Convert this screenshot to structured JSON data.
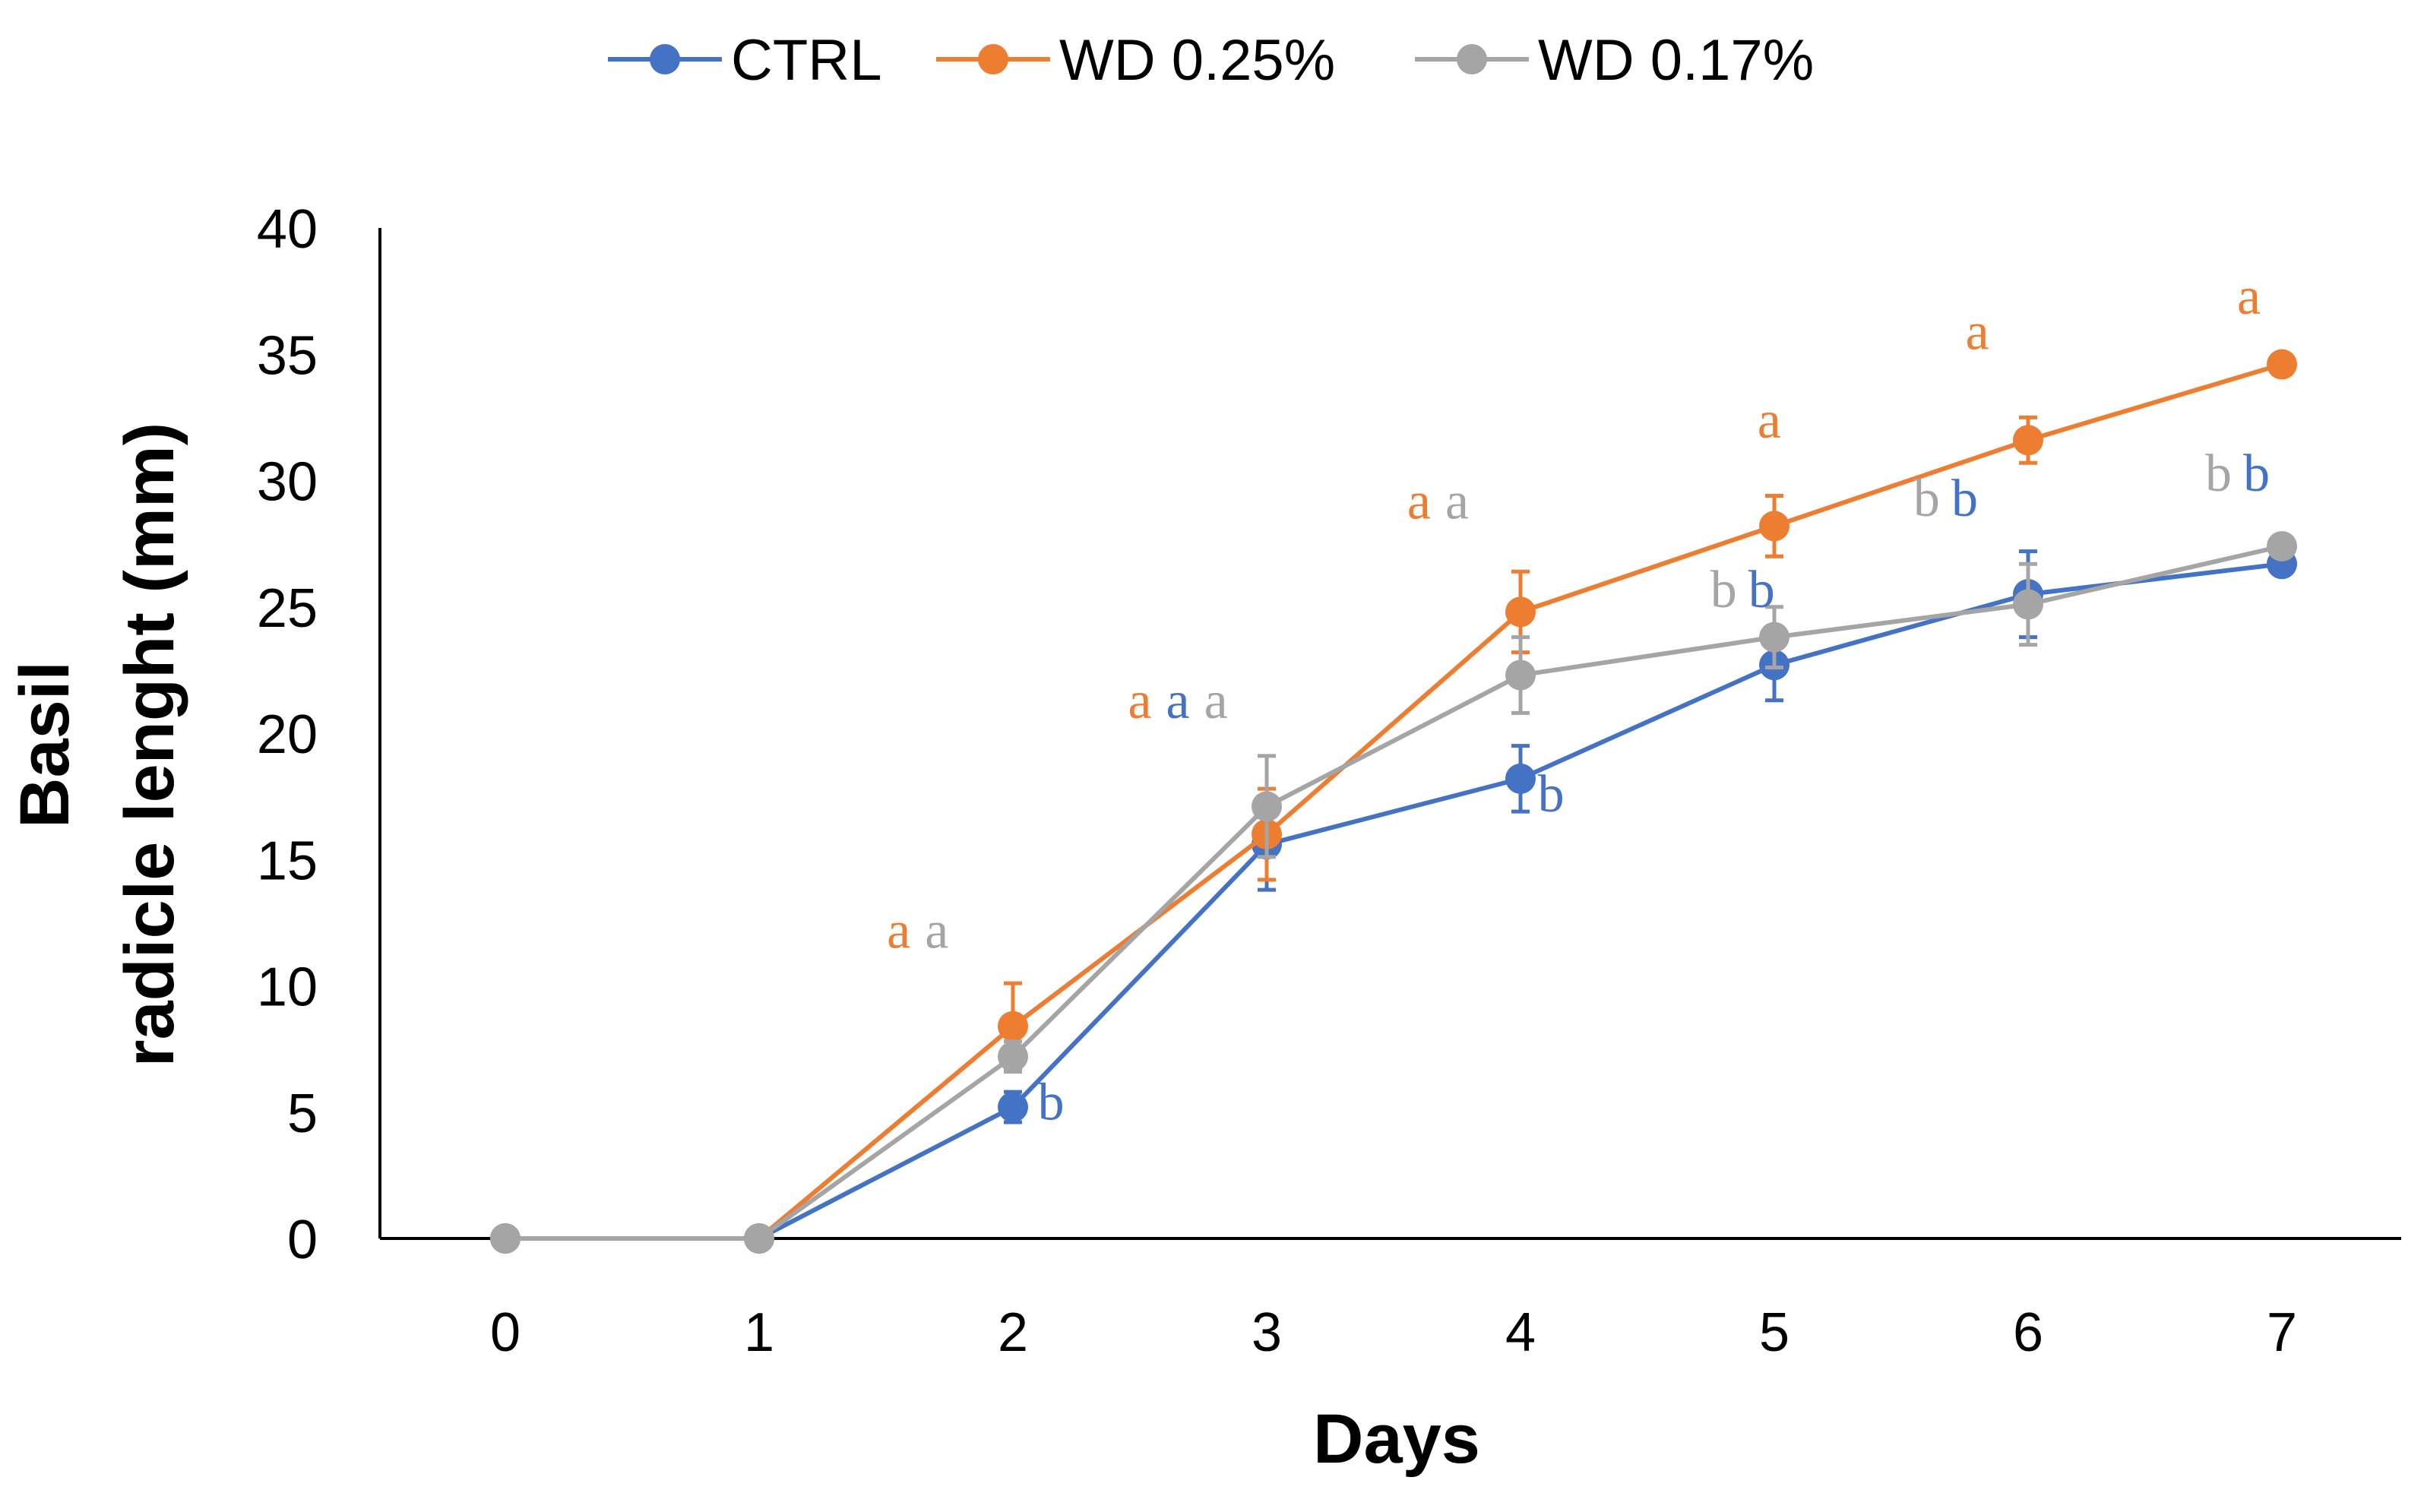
{
  "chart_data": {
    "type": "line",
    "xlabel": "Days",
    "ylabel_lines": [
      "Basil",
      "radicle lenght (mm)"
    ],
    "x": [
      0,
      1,
      2,
      3,
      4,
      5,
      6,
      7
    ],
    "ylim": [
      0,
      40
    ],
    "yticks": [
      0,
      5,
      10,
      15,
      20,
      25,
      30,
      35,
      40
    ],
    "grid": false,
    "legend_position": "top-center",
    "series": [
      {
        "name": "CTRL",
        "color": "#4472C4",
        "values": [
          0,
          0,
          5.2,
          15.6,
          18.2,
          22.7,
          25.5,
          26.7
        ],
        "errors": [
          0,
          0,
          0.6,
          1.8,
          1.3,
          1.4,
          1.7,
          0.3
        ]
      },
      {
        "name": "WD 0.25%",
        "color": "#ED7D31",
        "values": [
          0,
          0,
          8.4,
          16.0,
          24.8,
          28.2,
          31.6,
          34.6
        ],
        "errors": [
          0,
          0,
          1.7,
          1.8,
          1.6,
          1.2,
          0.9,
          0.3
        ]
      },
      {
        "name": "WD 0.17%",
        "color": "#A5A5A5",
        "values": [
          0,
          0,
          7.2,
          17.1,
          22.3,
          23.8,
          25.1,
          27.4
        ],
        "errors": [
          0,
          0,
          0.6,
          2.0,
          1.5,
          1.2,
          1.6,
          0.3
        ]
      }
    ],
    "annotations": [
      {
        "text": "a",
        "day": 2,
        "y": 11.5,
        "offset": -0.45,
        "color": "#ED7D31"
      },
      {
        "text": "a",
        "day": 2,
        "y": 11.5,
        "offset": -0.3,
        "color": "#A5A5A5"
      },
      {
        "text": "b",
        "day": 2,
        "y": 4.7,
        "offset": 0.15,
        "color": "#4472C4"
      },
      {
        "text": "a",
        "day": 3,
        "y": 20.6,
        "offset": -0.5,
        "color": "#ED7D31"
      },
      {
        "text": "a",
        "day": 3,
        "y": 20.6,
        "offset": -0.35,
        "color": "#4472C4"
      },
      {
        "text": "a",
        "day": 3,
        "y": 20.6,
        "offset": -0.2,
        "color": "#A5A5A5"
      },
      {
        "text": "a",
        "day": 4,
        "y": 28.5,
        "offset": -0.4,
        "color": "#ED7D31"
      },
      {
        "text": "a",
        "day": 4,
        "y": 28.5,
        "offset": -0.25,
        "color": "#A5A5A5"
      },
      {
        "text": "b",
        "day": 4,
        "y": 16.9,
        "offset": 0.12,
        "color": "#4472C4"
      },
      {
        "text": "a",
        "day": 5,
        "y": 31.7,
        "offset": -0.02,
        "color": "#ED7D31"
      },
      {
        "text": "b",
        "day": 5,
        "y": 25.0,
        "offset": -0.2,
        "color": "#A5A5A5"
      },
      {
        "text": "b",
        "day": 5,
        "y": 25.0,
        "offset": -0.05,
        "color": "#4472C4"
      },
      {
        "text": "a",
        "day": 6,
        "y": 35.2,
        "offset": -0.2,
        "color": "#ED7D31"
      },
      {
        "text": "b",
        "day": 6,
        "y": 28.6,
        "offset": -0.4,
        "color": "#A5A5A5"
      },
      {
        "text": "b",
        "day": 6,
        "y": 28.6,
        "offset": -0.25,
        "color": "#4472C4"
      },
      {
        "text": "a",
        "day": 7,
        "y": 36.6,
        "offset": -0.13,
        "color": "#ED7D31"
      },
      {
        "text": "b",
        "day": 7,
        "y": 29.6,
        "offset": -0.25,
        "color": "#A5A5A5"
      },
      {
        "text": "b",
        "day": 7,
        "y": 29.6,
        "offset": -0.1,
        "color": "#4472C4"
      }
    ]
  }
}
